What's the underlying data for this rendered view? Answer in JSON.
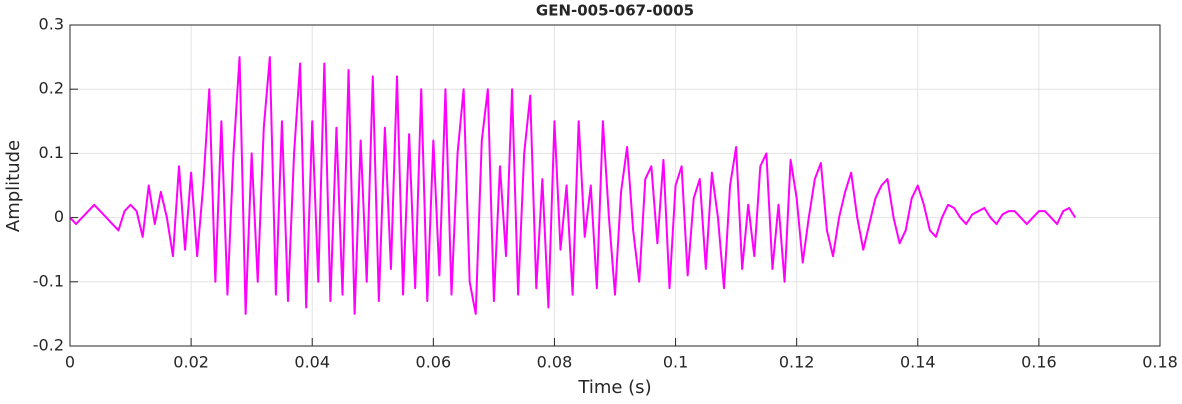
{
  "chart_data": {
    "type": "line",
    "title": "GEN-005-067-0005",
    "xlabel": "Time (s)",
    "ylabel": "Amplitude",
    "xlim": [
      0,
      0.18
    ],
    "ylim": [
      -0.2,
      0.3
    ],
    "xticks": [
      0,
      0.02,
      0.04,
      0.06,
      0.08,
      0.1,
      0.12,
      0.14,
      0.16,
      0.18
    ],
    "yticks": [
      -0.2,
      -0.1,
      0,
      0.1,
      0.2,
      0.3
    ],
    "grid": true,
    "series": [
      {
        "color": "#ff00ff",
        "x": [
          0,
          0.001,
          0.002,
          0.003,
          0.004,
          0.005,
          0.006,
          0.007,
          0.008,
          0.009,
          0.01,
          0.011,
          0.012,
          0.013,
          0.014,
          0.015,
          0.016,
          0.017,
          0.018,
          0.019,
          0.02,
          0.021,
          0.022,
          0.023,
          0.024,
          0.025,
          0.026,
          0.027,
          0.028,
          0.029,
          0.03,
          0.031,
          0.032,
          0.033,
          0.034,
          0.035,
          0.036,
          0.037,
          0.038,
          0.039,
          0.04,
          0.041,
          0.042,
          0.043,
          0.044,
          0.045,
          0.046,
          0.047,
          0.048,
          0.049,
          0.05,
          0.051,
          0.052,
          0.053,
          0.054,
          0.055,
          0.056,
          0.057,
          0.058,
          0.059,
          0.06,
          0.061,
          0.062,
          0.063,
          0.064,
          0.065,
          0.066,
          0.067,
          0.068,
          0.069,
          0.07,
          0.071,
          0.072,
          0.073,
          0.074,
          0.075,
          0.076,
          0.077,
          0.078,
          0.079,
          0.08,
          0.081,
          0.082,
          0.083,
          0.084,
          0.085,
          0.086,
          0.087,
          0.088,
          0.089,
          0.09,
          0.091,
          0.092,
          0.093,
          0.094,
          0.095,
          0.096,
          0.097,
          0.098,
          0.099,
          0.1,
          0.101,
          0.102,
          0.103,
          0.104,
          0.105,
          0.106,
          0.107,
          0.108,
          0.109,
          0.11,
          0.111,
          0.112,
          0.113,
          0.114,
          0.115,
          0.116,
          0.117,
          0.118,
          0.119,
          0.12,
          0.121,
          0.122,
          0.123,
          0.124,
          0.125,
          0.126,
          0.127,
          0.128,
          0.129,
          0.13,
          0.131,
          0.132,
          0.133,
          0.134,
          0.135,
          0.136,
          0.137,
          0.138,
          0.139,
          0.14,
          0.141,
          0.142,
          0.143,
          0.144,
          0.145,
          0.146,
          0.147,
          0.148,
          0.149,
          0.15,
          0.151,
          0.152,
          0.153,
          0.154,
          0.155,
          0.156,
          0.157,
          0.158,
          0.159,
          0.16,
          0.161,
          0.162,
          0.163,
          0.164,
          0.165,
          0.166
        ],
        "values": [
          0,
          -0.01,
          0,
          0.01,
          0.02,
          0.01,
          0,
          -0.01,
          -0.02,
          0.01,
          0.02,
          0.01,
          -0.03,
          0.05,
          -0.01,
          0.04,
          0,
          -0.06,
          0.08,
          -0.05,
          0.07,
          -0.06,
          0.05,
          0.2,
          -0.1,
          0.15,
          -0.12,
          0.1,
          0.25,
          -0.15,
          0.1,
          -0.1,
          0.14,
          0.25,
          -0.12,
          0.15,
          -0.13,
          0.1,
          0.24,
          -0.14,
          0.15,
          -0.1,
          0.24,
          -0.13,
          0.14,
          -0.12,
          0.23,
          -0.15,
          0.12,
          -0.1,
          0.22,
          -0.13,
          0.14,
          -0.08,
          0.22,
          -0.12,
          0.13,
          -0.11,
          0.2,
          -0.13,
          0.12,
          -0.09,
          0.2,
          -0.12,
          0.1,
          0.2,
          -0.1,
          -0.15,
          0.12,
          0.2,
          -0.13,
          0.08,
          -0.06,
          0.2,
          -0.12,
          0.1,
          0.19,
          -0.11,
          0.06,
          -0.14,
          0.15,
          -0.05,
          0.05,
          -0.12,
          0.15,
          -0.03,
          0.05,
          -0.11,
          0.15,
          0,
          -0.12,
          0.04,
          0.11,
          -0.02,
          -0.1,
          0.06,
          0.08,
          -0.04,
          0.09,
          -0.11,
          0.05,
          0.08,
          -0.09,
          0.03,
          0.06,
          -0.08,
          0.07,
          0,
          -0.11,
          0.05,
          0.11,
          -0.08,
          0.02,
          -0.06,
          0.08,
          0.1,
          -0.08,
          0.02,
          -0.1,
          0.09,
          0.03,
          -0.07,
          0,
          0.06,
          0.085,
          -0.02,
          -0.06,
          0,
          0.04,
          0.07,
          0,
          -0.05,
          -0.01,
          0.03,
          0.05,
          0.06,
          0,
          -0.04,
          -0.02,
          0.03,
          0.05,
          0.02,
          -0.02,
          -0.03,
          0,
          0.02,
          0.015,
          0,
          -0.01,
          0.005,
          0.01,
          0.015,
          0,
          -0.01,
          0.005,
          0.01,
          0.01,
          0,
          -0.01,
          0,
          0.01,
          0.01,
          0,
          -0.01,
          0.01,
          0.015,
          0
        ]
      }
    ]
  }
}
